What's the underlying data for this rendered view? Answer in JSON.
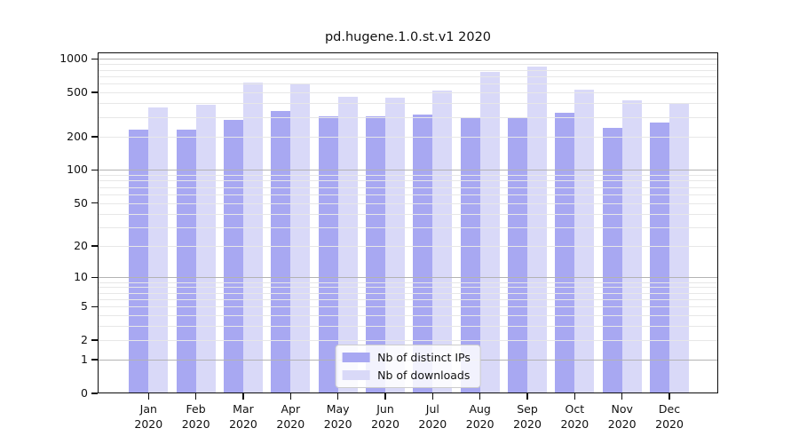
{
  "title": "pd.hugene.1.0.st.v1 2020",
  "chart_data": {
    "type": "bar",
    "title": "pd.hugene.1.0.st.v1 2020",
    "categories": [
      "Jan 2020",
      "Feb 2020",
      "Mar 2020",
      "Apr 2020",
      "May 2020",
      "Jun 2020",
      "Jul 2020",
      "Aug 2020",
      "Sep 2020",
      "Oct 2020",
      "Nov 2020",
      "Dec 2020"
    ],
    "x_tick_top": [
      "Jan",
      "Feb",
      "Mar",
      "Apr",
      "May",
      "Jun",
      "Jul",
      "Aug",
      "Sep",
      "Oct",
      "Nov",
      "Dec"
    ],
    "x_tick_bottom": [
      "2020",
      "2020",
      "2020",
      "2020",
      "2020",
      "2020",
      "2020",
      "2020",
      "2020",
      "2020",
      "2020",
      "2020"
    ],
    "series": [
      {
        "name": "Nb of distinct IPs",
        "color": "#a8a8f2",
        "values": [
          230,
          233,
          281,
          341,
          304,
          305,
          317,
          295,
          295,
          329,
          239,
          268
        ]
      },
      {
        "name": "Nb of downloads",
        "color": "#d9d9f8",
        "values": [
          365,
          385,
          616,
          590,
          457,
          452,
          520,
          770,
          852,
          534,
          428,
          396
        ]
      }
    ],
    "xlabel": "",
    "ylabel": "",
    "yscale": "log(1+v)",
    "ylim": [
      0,
      1150
    ],
    "y_ticks": [
      1000,
      500,
      200,
      100,
      50,
      20,
      10,
      5,
      2,
      1,
      0
    ],
    "y_tick_labels": [
      "1000",
      "500",
      "200",
      "100",
      "50",
      "20",
      "10",
      "5",
      "2",
      "1",
      "0"
    ],
    "y_major_gridlines": [
      1,
      10,
      100,
      1000
    ],
    "y_minor_gridlines": [
      2,
      3,
      4,
      5,
      6,
      7,
      8,
      9,
      20,
      30,
      40,
      50,
      60,
      70,
      80,
      90,
      200,
      300,
      400,
      500,
      600,
      700,
      800,
      900
    ],
    "grid": true,
    "legend_position": "lower center",
    "colors": {
      "major_grid": "#b3b3b3",
      "minor_grid": "#e7e7e7",
      "spine": "#0d0d0d",
      "text": "#111111",
      "background": "#ffffff"
    }
  }
}
